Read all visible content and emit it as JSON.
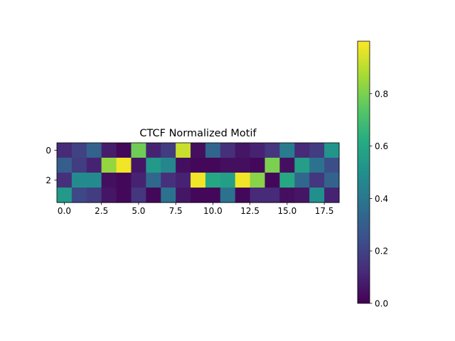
{
  "chart_data": {
    "type": "heatmap",
    "title": "CTCF Normalized Motif",
    "xlabel": "",
    "ylabel": "",
    "colormap": "viridis",
    "n_cols": 19,
    "n_rows": 4,
    "xlim": [
      -0.5,
      18.5
    ],
    "ylim": [
      3.5,
      -0.5
    ],
    "x_ticks": [
      0.0,
      2.5,
      5.0,
      7.5,
      10.0,
      12.5,
      15.0,
      17.5
    ],
    "x_tick_labels": [
      "0.0",
      "2.5",
      "5.0",
      "7.5",
      "10.0",
      "12.5",
      "15.0",
      "17.5"
    ],
    "y_ticks": [
      0,
      2
    ],
    "y_tick_labels": [
      "0",
      "2"
    ],
    "colorbar": {
      "range": [
        0.0,
        1.0
      ],
      "ticks": [
        0.0,
        0.2,
        0.4,
        0.6,
        0.8
      ],
      "tick_labels": [
        "0.0",
        "0.2",
        "0.4",
        "0.6",
        "0.8"
      ]
    },
    "values": [
      [
        0.12,
        0.2,
        0.32,
        0.08,
        0.02,
        0.78,
        0.1,
        0.18,
        0.92,
        0.04,
        0.33,
        0.14,
        0.06,
        0.1,
        0.16,
        0.42,
        0.12,
        0.18,
        0.52
      ],
      [
        0.3,
        0.18,
        0.1,
        0.84,
        0.98,
        0.06,
        0.54,
        0.46,
        0.04,
        0.02,
        0.02,
        0.04,
        0.04,
        0.02,
        0.8,
        0.04,
        0.56,
        0.38,
        0.24
      ],
      [
        0.14,
        0.48,
        0.48,
        0.04,
        0.02,
        0.1,
        0.34,
        0.14,
        0.1,
        0.98,
        0.6,
        0.56,
        0.98,
        0.82,
        0.02,
        0.6,
        0.34,
        0.16,
        0.32
      ],
      [
        0.54,
        0.22,
        0.18,
        0.06,
        0.02,
        0.16,
        0.02,
        0.38,
        0.06,
        0.02,
        0.02,
        0.38,
        0.02,
        0.12,
        0.12,
        0.04,
        0.06,
        0.5,
        0.1
      ]
    ]
  }
}
